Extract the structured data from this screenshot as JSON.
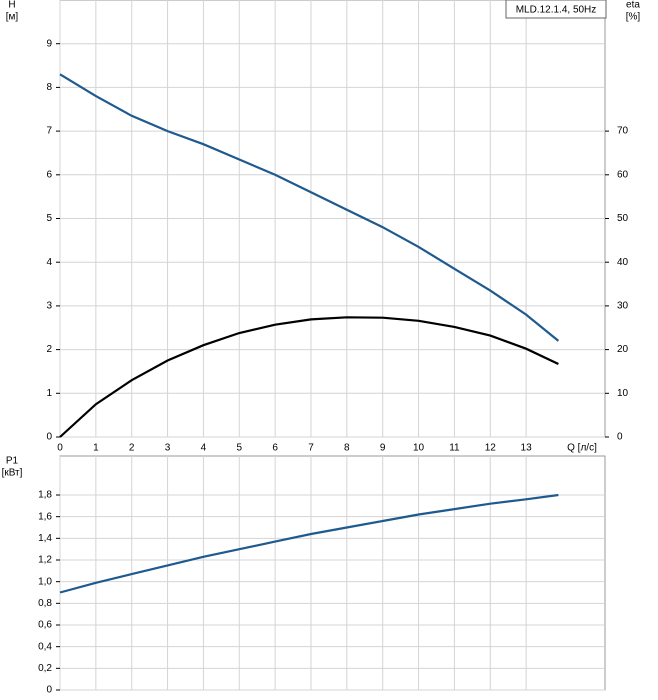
{
  "chart_data": [
    {
      "type": "line",
      "annotation": "MLD.12.1.4, 50Hz",
      "y_label": "H",
      "y_unit": "[м]",
      "y2_label": "eta",
      "y2_unit": "[%]",
      "x_label": "Q [л/с]",
      "x": [
        0,
        1,
        2,
        3,
        4,
        5,
        6,
        7,
        8,
        9,
        10,
        11,
        12,
        13,
        13.9
      ],
      "xlim": [
        0,
        15.2
      ],
      "xticks": [
        0,
        1,
        2,
        3,
        4,
        5,
        6,
        7,
        8,
        9,
        10,
        11,
        12,
        13
      ],
      "ylim": [
        0,
        10
      ],
      "yticks": [
        0,
        1,
        2,
        3,
        4,
        5,
        6,
        7,
        8,
        9
      ],
      "y2lim": [
        0,
        100
      ],
      "y2ticks": [
        0,
        10,
        20,
        30,
        40,
        50,
        60,
        70
      ],
      "grid": true,
      "series": [
        {
          "name": "H",
          "color": "#1f5a8f",
          "values": [
            8.3,
            7.8,
            7.35,
            7.0,
            6.7,
            6.35,
            6.0,
            5.6,
            5.2,
            4.8,
            4.35,
            3.85,
            3.35,
            2.8,
            2.2
          ]
        },
        {
          "name": "eta",
          "color": "#000000",
          "axis": "y2",
          "values": [
            0,
            7.5,
            13,
            17.5,
            21,
            23.8,
            25.7,
            26.9,
            27.4,
            27.3,
            26.6,
            25.2,
            23.2,
            20.2,
            16.7
          ]
        }
      ]
    },
    {
      "type": "line",
      "y_label": "P1",
      "y_unit": "[кВт]",
      "x": [
        0,
        1,
        2,
        3,
        4,
        5,
        6,
        7,
        8,
        9,
        10,
        11,
        12,
        13,
        13.9
      ],
      "xlim": [
        0,
        15.2
      ],
      "ylim": [
        0,
        2.16
      ],
      "yticks": [
        0,
        {
          "value": 0.2,
          "label": "0,2"
        },
        {
          "value": 0.4,
          "label": "0,4"
        },
        {
          "value": 0.6,
          "label": "0,6"
        },
        {
          "value": 0.8,
          "label": "0,8"
        },
        {
          "value": 1.0,
          "label": "1,0"
        },
        {
          "value": 1.2,
          "label": "1,2"
        },
        {
          "value": 1.4,
          "label": "1,4"
        },
        {
          "value": 1.6,
          "label": "1,6"
        },
        {
          "value": 1.8,
          "label": "1,8"
        }
      ],
      "grid": true,
      "series": [
        {
          "name": "P1",
          "color": "#1f5a8f",
          "values": [
            0.9,
            0.99,
            1.07,
            1.15,
            1.23,
            1.3,
            1.37,
            1.44,
            1.5,
            1.56,
            1.62,
            1.67,
            1.72,
            1.76,
            1.8
          ]
        }
      ]
    }
  ]
}
